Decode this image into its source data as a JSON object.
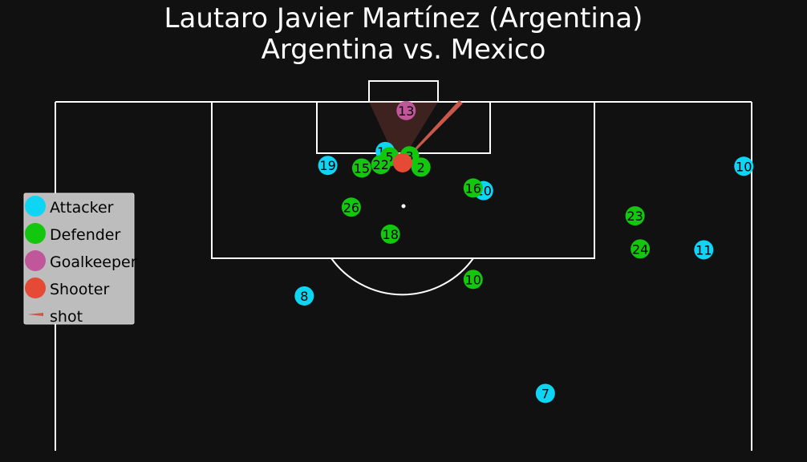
{
  "title_line1": "Lautaro Javier Martínez (Argentina)",
  "title_line2": "Argentina vs. Mexico",
  "colors": {
    "background": "#111111",
    "lines": "#ffffff",
    "attacker": "#0fd5f5",
    "defender": "#13c70f",
    "goalkeeper": "#c0579a",
    "shooter": "#e44a35",
    "shot": "#c9584a",
    "legend_bg": "#bdbdbd"
  },
  "legend": {
    "attacker": "Attacker",
    "defender": "Defender",
    "goalkeeper": "Goalkeeper",
    "shooter": "Shooter",
    "shot": "shot"
  },
  "chart_data": {
    "type": "scatter",
    "description_units": "pitch coordinates (x across the pitch 0-80, y metres from goal line)",
    "shooter": {
      "x": 39.9,
      "y": 7.0
    },
    "shot_end": {
      "x": 46.6,
      "y": 0.0
    },
    "goalkeeper": {
      "number": "13",
      "x": 40.3,
      "y": 1.0
    },
    "attackers": [
      {
        "number": "18",
        "x": 37.9,
        "y": 5.7
      },
      {
        "number": "19",
        "x": 31.3,
        "y": 7.3
      },
      {
        "number": "20",
        "x": 49.2,
        "y": 10.2
      },
      {
        "number": "10",
        "x": 79.1,
        "y": 7.4
      },
      {
        "number": "11",
        "x": 74.5,
        "y": 17.0
      },
      {
        "number": "8",
        "x": 28.6,
        "y": 22.3
      },
      {
        "number": "7",
        "x": 56.3,
        "y": 33.5
      }
    ],
    "defenders": [
      {
        "number": "3",
        "x": 40.7,
        "y": 6.2
      },
      {
        "number": "5",
        "x": 38.4,
        "y": 6.3
      },
      {
        "number": "22",
        "x": 37.4,
        "y": 7.2
      },
      {
        "number": "15",
        "x": 35.2,
        "y": 7.6
      },
      {
        "number": "2",
        "x": 42.0,
        "y": 7.5
      },
      {
        "number": "16",
        "x": 48.0,
        "y": 9.9
      },
      {
        "number": "26",
        "x": 34.0,
        "y": 12.1
      },
      {
        "number": "18",
        "x": 38.5,
        "y": 15.2
      },
      {
        "number": "23",
        "x": 66.6,
        "y": 13.1
      },
      {
        "number": "24",
        "x": 67.2,
        "y": 16.9
      },
      {
        "number": "10",
        "x": 48.0,
        "y": 20.4
      }
    ]
  }
}
